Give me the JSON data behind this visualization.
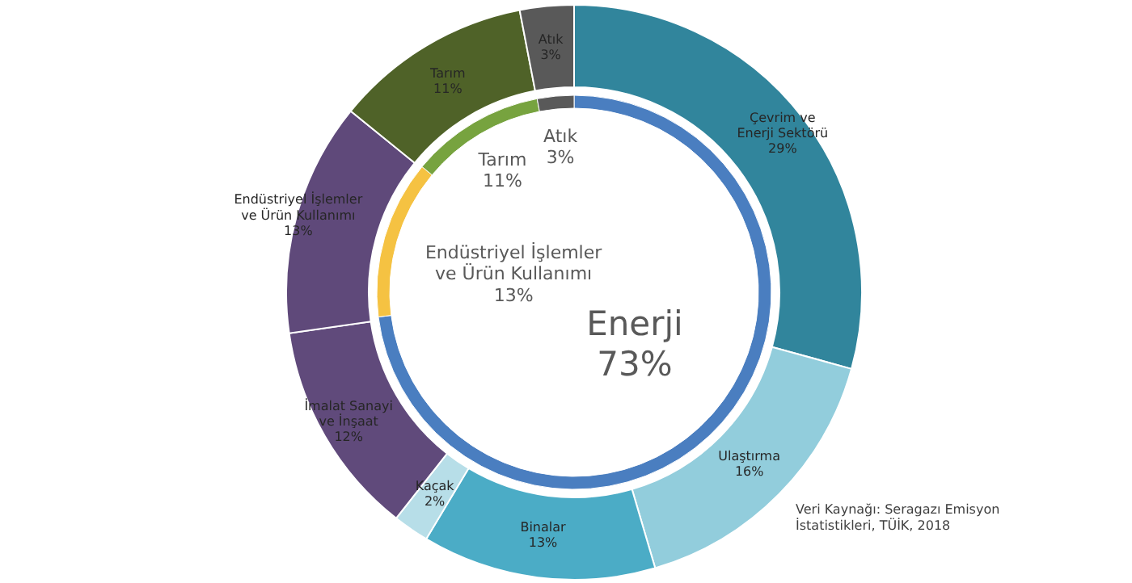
{
  "chart_data": [
    {
      "type": "donut",
      "categories": [
        "Çevrim ve Enerji Sektörü",
        "Ulaştırma",
        "Binalar",
        "Kaçak",
        "İmalat Sanayi ve İnşaat",
        "Endüstriyel İşlemler ve Ürün Kullanımı",
        "Tarım",
        "Atık"
      ],
      "values": [
        29,
        16,
        13,
        2,
        12,
        13,
        11,
        3
      ],
      "value_labels": [
        "29%",
        "16%",
        "13%",
        "2%",
        "12%",
        "13%",
        "11%",
        "3%"
      ],
      "colors": [
        "#31859c",
        "#92cddc",
        "#4bacc6",
        "#b7dee8",
        "#604a7b",
        "#5f497a",
        "#4f6228",
        "#595959"
      ],
      "annotations": [
        "Veri Kaynağı: Seragazı Emisyon İstatistikleri, TÜİK, 2018"
      ]
    },
    {
      "type": "donut",
      "categories": [
        "Enerji",
        "Endüstriyel İşlemler ve Ürün Kullanımı",
        "Tarım",
        "Atık"
      ],
      "values": [
        73,
        13,
        11,
        3
      ],
      "value_labels": [
        "73%",
        "13%",
        "11%",
        "3%"
      ],
      "colors": [
        "#4a7ec0",
        "#f5c242",
        "#77a33f",
        "#595959"
      ]
    }
  ]
}
